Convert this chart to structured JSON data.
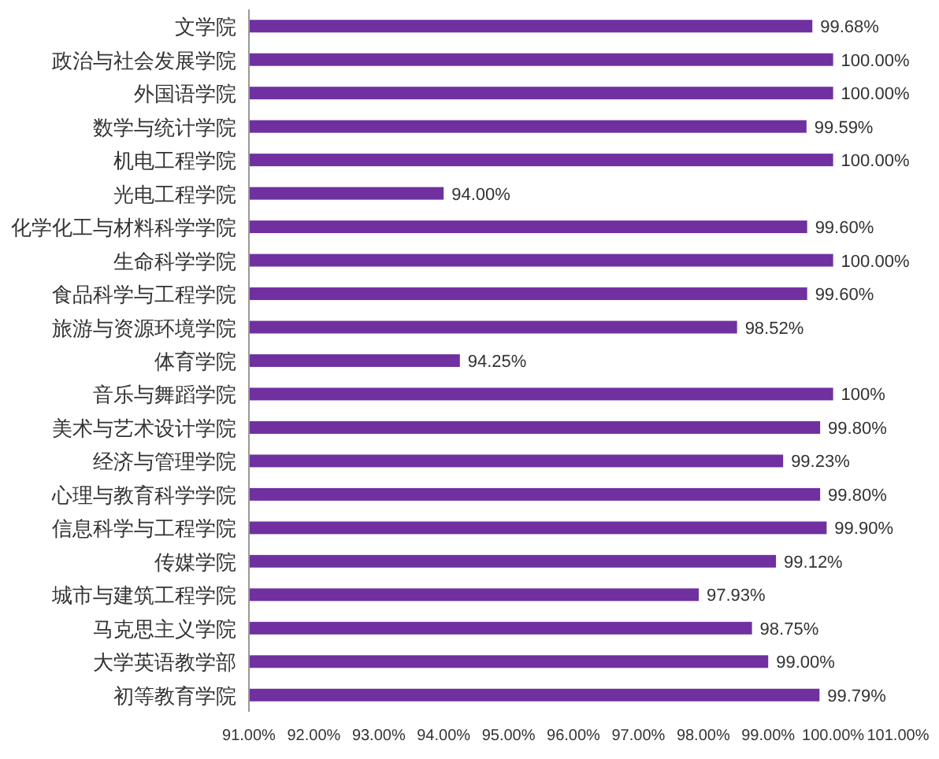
{
  "chart_data": {
    "type": "bar",
    "orientation": "horizontal",
    "categories": [
      "文学院",
      "政治与社会发展学院",
      "外国语学院",
      "数学与统计学院",
      "机电工程学院",
      "光电工程学院",
      "化学化工与材料科学学院",
      "生命科学学院",
      "食品科学与工程学院",
      "旅游与资源环境学院",
      "体育学院",
      "音乐与舞蹈学院",
      "美术与艺术设计学院",
      "经济与管理学院",
      "心理与教育科学学院",
      "信息科学与工程学院",
      "传媒学院",
      "城市与建筑工程学院",
      "马克思主义学院",
      "大学英语教学部",
      "初等教育学院"
    ],
    "values": [
      99.68,
      100,
      100,
      99.59,
      100,
      94,
      99.6,
      100,
      99.6,
      98.52,
      94.25,
      100,
      99.8,
      99.23,
      99.8,
      99.9,
      99.12,
      97.93,
      98.75,
      99,
      99.79
    ],
    "value_labels": [
      "99.68%",
      "100.00%",
      "100.00%",
      "99.59%",
      "100.00%",
      "94.00%",
      "99.60%",
      "100.00%",
      "99.60%",
      "98.52%",
      "94.25%",
      "100%",
      "99.80%",
      "99.23%",
      "99.80%",
      "99.90%",
      "99.12%",
      "97.93%",
      "98.75%",
      "99.00%",
      "99.79%"
    ],
    "color": "#7030a0",
    "xlim": [
      91,
      101
    ],
    "xticks": [
      {
        "value": 91,
        "label": "91.00%"
      },
      {
        "value": 92,
        "label": "92.00%"
      },
      {
        "value": 93,
        "label": "93.00%"
      },
      {
        "value": 94,
        "label": "94.00%"
      },
      {
        "value": 95,
        "label": "95.00%"
      },
      {
        "value": 96,
        "label": "96.00%"
      },
      {
        "value": 97,
        "label": "97.00%"
      },
      {
        "value": 98,
        "label": "98.00%"
      },
      {
        "value": 99,
        "label": "99.00%"
      },
      {
        "value": 100,
        "label": "100.00%"
      },
      {
        "value": 101,
        "label": "101.00%"
      }
    ],
    "grid": false
  }
}
